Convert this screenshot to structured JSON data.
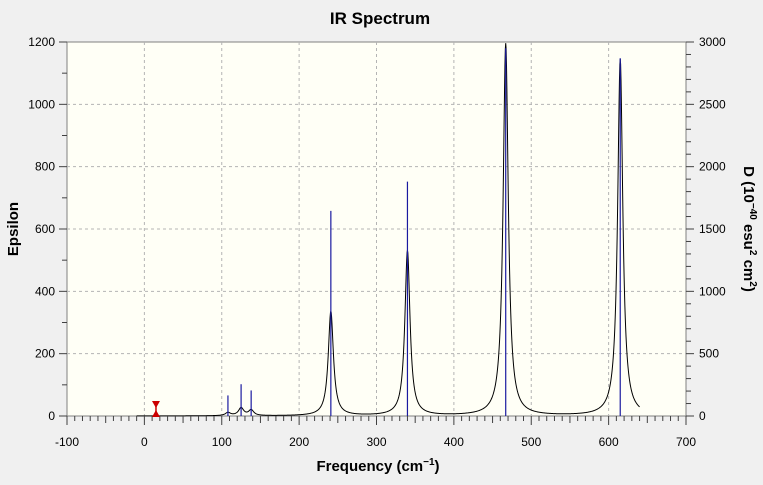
{
  "chart_data": {
    "type": "line",
    "title": "IR Spectrum",
    "xlabel": "Frequency (cm",
    "xlabel_sup": "−1",
    "xlabel_tail": ")",
    "ylabel_left": "Epsilon",
    "ylabel_right_parts": [
      {
        "text": "D (10",
        "sup": false
      },
      {
        "text": "−40",
        "sup": true
      },
      {
        "text": " esu",
        "sup": false
      },
      {
        "text": "2",
        "sup": true
      },
      {
        "text": " cm",
        "sup": false
      },
      {
        "text": "2",
        "sup": true
      },
      {
        "text": ")",
        "sup": false
      }
    ],
    "xlim": [
      -100,
      700
    ],
    "ylim_left": [
      0,
      1200
    ],
    "ylim_right": [
      0,
      3000
    ],
    "x_ticks": [
      "-100",
      "0",
      "100",
      "200",
      "300",
      "400",
      "500",
      "600",
      "700"
    ],
    "y_left_ticks": [
      "0",
      "200",
      "400",
      "600",
      "800",
      "1000",
      "1200"
    ],
    "y_right_ticks": [
      "0",
      "500",
      "1000",
      "1500",
      "2000",
      "2500",
      "3000"
    ],
    "grid": true,
    "background_color": "#fffff6",
    "spectrum_color": "#000000",
    "stick_color": "#1a1aa0",
    "marker_color": "#cc0000",
    "marker_x": 15,
    "spectrum_range": [
      -10,
      640
    ],
    "lorentz_hwhm": 4,
    "peaks": [
      {
        "x": 108,
        "epsilon": 10
      },
      {
        "x": 125,
        "epsilon": 25
      },
      {
        "x": 138,
        "epsilon": 18
      },
      {
        "x": 241,
        "epsilon": 335
      },
      {
        "x": 340,
        "epsilon": 530
      },
      {
        "x": 467,
        "epsilon": 1195
      },
      {
        "x": 615,
        "epsilon": 1145
      }
    ],
    "sticks": [
      {
        "x": 108,
        "D": 165
      },
      {
        "x": 125,
        "D": 255
      },
      {
        "x": 138,
        "D": 205
      },
      {
        "x": 241,
        "D": 1645
      },
      {
        "x": 340,
        "D": 1880
      },
      {
        "x": 467,
        "D": 2950
      },
      {
        "x": 615,
        "D": 2870
      }
    ]
  }
}
